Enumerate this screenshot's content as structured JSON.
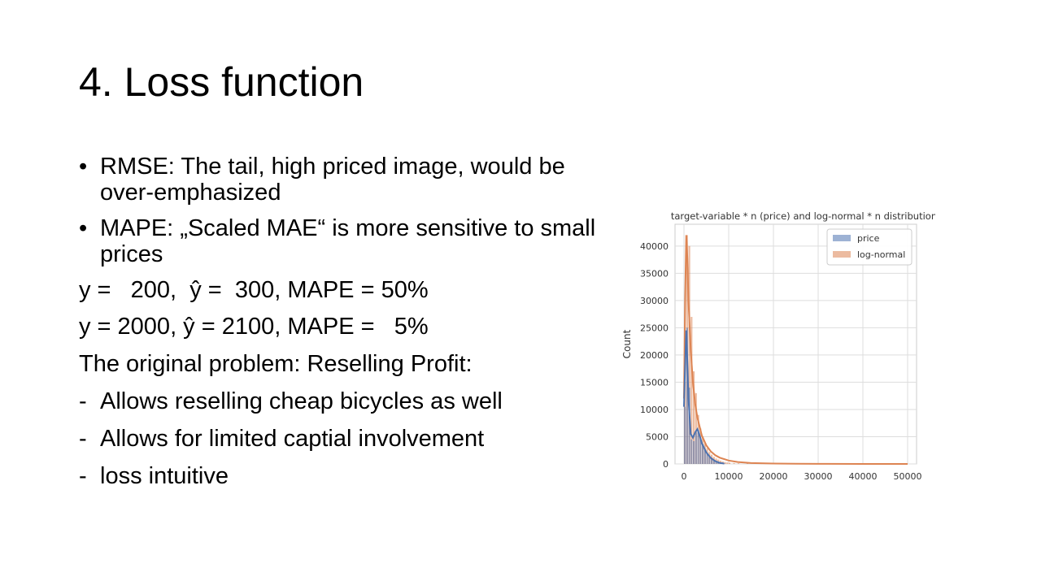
{
  "slide": {
    "title": "4. Loss function",
    "bullets": [
      "RMSE: The tail, high priced image, would be over-emphasized",
      "MAPE: „Scaled MAE“ is more sensitive to small prices"
    ],
    "lines": [
      "y =   200,  ŷ =  300, MAPE = 50%",
      "y = 2000, ŷ = 2100, MAPE =   5%",
      "The original problem: Reselling Profit:"
    ],
    "dash_items": [
      "Allows reselling cheap bicycles as well",
      "Allows for limited captial involvement",
      "loss intuitive"
    ],
    "bullet_marker": "•",
    "dash_marker": "-"
  },
  "chart_data": {
    "type": "bar",
    "title": "target-variable * n (price) and log-normal * n distribution",
    "xlabel": "",
    "ylabel": "Count",
    "xlim": [
      -2000,
      52000
    ],
    "ylim": [
      0,
      44000
    ],
    "xticks": [
      0,
      10000,
      20000,
      30000,
      40000,
      50000
    ],
    "yticks": [
      0,
      5000,
      10000,
      15000,
      20000,
      25000,
      30000,
      35000,
      40000
    ],
    "grid": true,
    "legend_position": "upper-right",
    "bin_width": 500,
    "series": [
      {
        "name": "price",
        "color": "#4c72b0",
        "bins": [
          0,
          500,
          1000,
          1500,
          2000,
          2500,
          3000,
          3500,
          4000,
          4500,
          5000,
          5500,
          6000,
          6500,
          7000,
          7500,
          8000,
          8500,
          9000
        ],
        "values": [
          10500,
          25000,
          14000,
          4500,
          4200,
          5800,
          6200,
          4800,
          3600,
          2600,
          1900,
          1300,
          900,
          600,
          400,
          250,
          150,
          100,
          50
        ],
        "kde_x": [
          0,
          250,
          500,
          750,
          1000,
          1500,
          2000,
          2500,
          3000,
          3500,
          4000,
          5000,
          6000,
          7000,
          8000,
          9000
        ],
        "kde_y": [
          10500,
          18000,
          24500,
          19000,
          12000,
          5500,
          4800,
          5800,
          6400,
          5200,
          3800,
          2100,
          1100,
          500,
          200,
          60
        ]
      },
      {
        "name": "log-normal",
        "color": "#dd8452",
        "bins": [
          0,
          500,
          1000,
          1500,
          2000,
          2500,
          3000,
          3500,
          4000,
          4500,
          5000,
          5500,
          6000,
          6500,
          7000,
          7500,
          8000,
          8500,
          9000,
          9500,
          10000,
          11000,
          12000,
          14000,
          16000,
          18000,
          20000
        ],
        "values": [
          15000,
          42000,
          40000,
          27000,
          17000,
          13000,
          9000,
          6500,
          5000,
          3800,
          2900,
          2200,
          1700,
          1300,
          1000,
          800,
          600,
          450,
          350,
          280,
          220,
          160,
          120,
          80,
          50,
          30,
          20
        ],
        "kde_x": [
          0,
          250,
          500,
          750,
          1000,
          1500,
          2000,
          2500,
          3000,
          4000,
          5000,
          6000,
          7000,
          8000,
          10000,
          12000,
          15000,
          20000,
          25000,
          30000,
          40000,
          50000
        ],
        "kde_y": [
          12000,
          30000,
          42000,
          38000,
          30000,
          21000,
          15000,
          11000,
          8500,
          5200,
          3400,
          2300,
          1600,
          1150,
          620,
          360,
          170,
          70,
          30,
          15,
          5,
          2
        ]
      }
    ]
  }
}
